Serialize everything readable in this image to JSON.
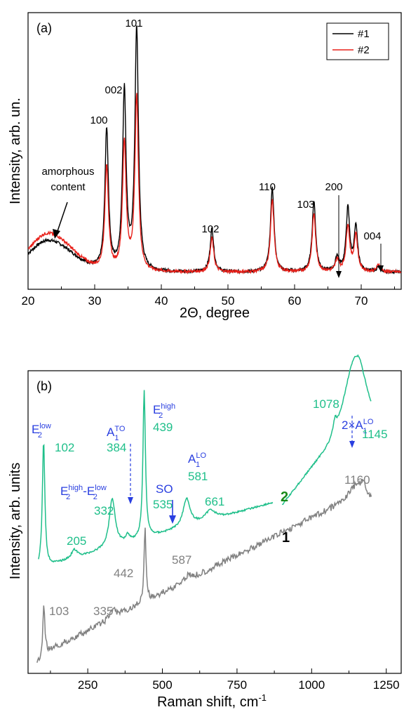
{
  "colors": {
    "series1": "#000000",
    "series2": "#e8201a",
    "raman2": "#1fbf8a",
    "raman1": "#808080",
    "mode_blue": "#2a3fe0",
    "label2": "#1a8a1a"
  },
  "chart_data": [
    {
      "type": "line",
      "panel_label": "(a)",
      "xlabel": "2Θ, degree",
      "ylabel": "Intensity, arb. un.",
      "xlim": [
        20,
        76
      ],
      "xticks": [
        "20",
        "30",
        "40",
        "50",
        "60",
        "70"
      ],
      "y_ticks_shown": false,
      "legend": {
        "placement": "top-right",
        "entries": [
          "#1",
          "#2"
        ]
      },
      "series": [
        {
          "name": "#1",
          "color": "#000000",
          "peaks": [
            [
              31.8,
              0.58
            ],
            [
              34.45,
              0.74
            ],
            [
              36.3,
              1.0
            ],
            [
              47.6,
              0.18
            ],
            [
              56.65,
              0.35
            ],
            [
              62.9,
              0.29
            ],
            [
              66.4,
              0.06
            ],
            [
              68.0,
              0.26
            ],
            [
              69.2,
              0.18
            ],
            [
              72.6,
              0.02
            ]
          ],
          "amorphous_level": 0.13
        },
        {
          "name": "#2",
          "color": "#e8201a",
          "peaks": [
            [
              31.8,
              0.43
            ],
            [
              34.45,
              0.53
            ],
            [
              36.3,
              0.72
            ],
            [
              47.6,
              0.14
            ],
            [
              56.65,
              0.3
            ],
            [
              62.9,
              0.24
            ],
            [
              66.4,
              0.05
            ],
            [
              68.0,
              0.19
            ],
            [
              69.2,
              0.15
            ],
            [
              72.6,
              0.03
            ]
          ],
          "amorphous_level": 0.16
        }
      ],
      "peak_labels": [
        {
          "text": "100",
          "x": 31.8
        },
        {
          "text": "002",
          "x": 34.45
        },
        {
          "text": "101",
          "x": 36.3
        },
        {
          "text": "102",
          "x": 47.6
        },
        {
          "text": "110",
          "x": 56.65
        },
        {
          "text": "103",
          "x": 62.9
        },
        {
          "text": "200",
          "x": 66.4
        },
        {
          "text": "004",
          "x": 72.6
        }
      ],
      "annotation": {
        "line1": "amorphous",
        "line2": "content",
        "x": 23.5
      }
    },
    {
      "type": "line",
      "panel_label": "(b)",
      "xlabel": "Raman shift, cm",
      "xlabel_sup": "-1",
      "ylabel": "Intensity, arb. units",
      "xlim": [
        50,
        1300
      ],
      "xticks": [
        "250",
        "500",
        "750",
        "1000",
        "1250"
      ],
      "y_ticks_shown": false,
      "series": [
        {
          "name": "2",
          "color": "#1fbf8a",
          "peaks": [
            [
              102,
              0.9
            ],
            [
              205,
              0.06
            ],
            [
              332,
              0.35
            ],
            [
              384,
              0.05
            ],
            [
              439,
              1.0
            ],
            [
              535,
              0.04
            ],
            [
              581,
              0.2
            ],
            [
              661,
              0.07
            ],
            [
              1078,
              0.1
            ],
            [
              1145,
              0.38
            ]
          ]
        },
        {
          "name": "1",
          "color": "#808080",
          "peaks": [
            [
              103,
              0.5
            ],
            [
              335,
              0.1
            ],
            [
              442,
              0.8
            ],
            [
              587,
              0.06
            ],
            [
              1160,
              0.12
            ]
          ]
        }
      ],
      "number_labels_2": [
        "102",
        "205",
        "332",
        "384",
        "439",
        "535",
        "581",
        "661",
        "1078",
        "1145"
      ],
      "number_labels_1": [
        "103",
        "335",
        "442",
        "587",
        "1160"
      ],
      "mode_labels": {
        "e2low_base": "E",
        "e2low_sub": "2",
        "e2low_sup": "low",
        "e2high_base": "E",
        "e2high_sub": "2",
        "e2high_sup": "high",
        "diff_a": "E",
        "diff_a_sub": "2",
        "diff_a_sup": "high",
        "diff_sep": "-E",
        "diff_b_sub": "2",
        "diff_b_sup": "low",
        "a1to_base": "A",
        "a1to_sub": "1",
        "a1to_sup": "TO",
        "so": "SO",
        "a1lo_base": "A",
        "a1lo_sub": "1",
        "a1lo_sup": "LO",
        "twoa1lo_base": "2×A",
        "twoa1lo_sub": "1",
        "twoa1lo_sup": "LO"
      }
    }
  ]
}
